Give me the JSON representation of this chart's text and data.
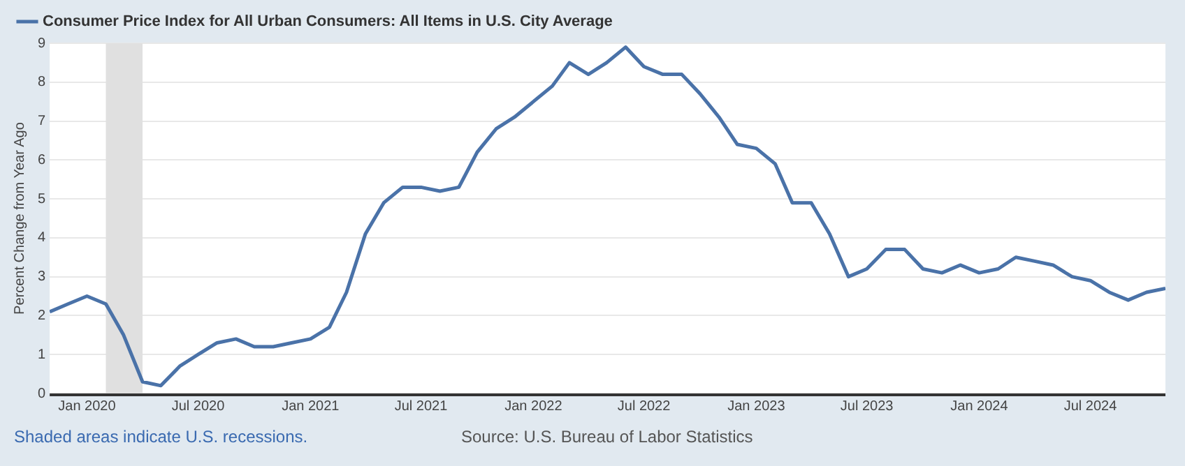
{
  "chart_data": {
    "type": "line",
    "ylabel": "Percent Change from Year Ago",
    "x": [
      "2019-11",
      "2019-12",
      "2020-01",
      "2020-02",
      "2020-03",
      "2020-04",
      "2020-05",
      "2020-06",
      "2020-07",
      "2020-08",
      "2020-09",
      "2020-10",
      "2020-11",
      "2020-12",
      "2021-01",
      "2021-02",
      "2021-03",
      "2021-04",
      "2021-05",
      "2021-06",
      "2021-07",
      "2021-08",
      "2021-09",
      "2021-10",
      "2021-11",
      "2021-12",
      "2022-01",
      "2022-02",
      "2022-03",
      "2022-04",
      "2022-05",
      "2022-06",
      "2022-07",
      "2022-08",
      "2022-09",
      "2022-10",
      "2022-11",
      "2022-12",
      "2023-01",
      "2023-02",
      "2023-03",
      "2023-04",
      "2023-05",
      "2023-06",
      "2023-07",
      "2023-08",
      "2023-09",
      "2023-10",
      "2023-11",
      "2023-12",
      "2024-01",
      "2024-02",
      "2024-03",
      "2024-04",
      "2024-05",
      "2024-06",
      "2024-07",
      "2024-08",
      "2024-09",
      "2024-10",
      "2024-11"
    ],
    "series": [
      {
        "name": "Consumer Price Index for All Urban Consumers: All Items in U.S. City Average",
        "color": "#4a72a8",
        "values": [
          2.1,
          2.3,
          2.5,
          2.3,
          1.5,
          0.3,
          0.2,
          0.7,
          1.0,
          1.3,
          1.4,
          1.2,
          1.2,
          1.3,
          1.4,
          1.7,
          2.6,
          4.1,
          4.9,
          5.3,
          5.3,
          5.2,
          5.3,
          6.2,
          6.8,
          7.1,
          7.5,
          7.9,
          8.5,
          8.2,
          8.5,
          8.9,
          8.4,
          8.2,
          8.2,
          7.7,
          7.1,
          6.4,
          6.3,
          5.9,
          4.9,
          4.9,
          4.1,
          3.0,
          3.2,
          3.7,
          3.7,
          3.2,
          3.1,
          3.3,
          3.1,
          3.2,
          3.5,
          3.4,
          3.3,
          3.0,
          2.9,
          2.6,
          2.4,
          2.6,
          2.7
        ]
      }
    ],
    "xlim": [
      "2019-11",
      "2024-11"
    ],
    "xticks": [
      {
        "value": "2020-01",
        "label": "Jan 2020"
      },
      {
        "value": "2020-07",
        "label": "Jul 2020"
      },
      {
        "value": "2021-01",
        "label": "Jan 2021"
      },
      {
        "value": "2021-07",
        "label": "Jul 2021"
      },
      {
        "value": "2022-01",
        "label": "Jan 2022"
      },
      {
        "value": "2022-07",
        "label": "Jul 2022"
      },
      {
        "value": "2023-01",
        "label": "Jan 2023"
      },
      {
        "value": "2023-07",
        "label": "Jul 2023"
      },
      {
        "value": "2024-01",
        "label": "Jan 2024"
      },
      {
        "value": "2024-07",
        "label": "Jul 2024"
      }
    ],
    "ylim": [
      0,
      9
    ],
    "yticks": [
      0,
      1,
      2,
      3,
      4,
      5,
      6,
      7,
      8,
      9
    ],
    "bands": [
      {
        "axis": "x",
        "from": "2020-02",
        "to": "2020-04",
        "color": "#e0e0e0"
      }
    ],
    "grid": "y",
    "legend": "top left",
    "marker": "none",
    "line_style": "solid",
    "annotations": [
      "Shaded areas indicate U.S. recessions.",
      "Source: U.S. Bureau of Labor Statistics"
    ]
  }
}
